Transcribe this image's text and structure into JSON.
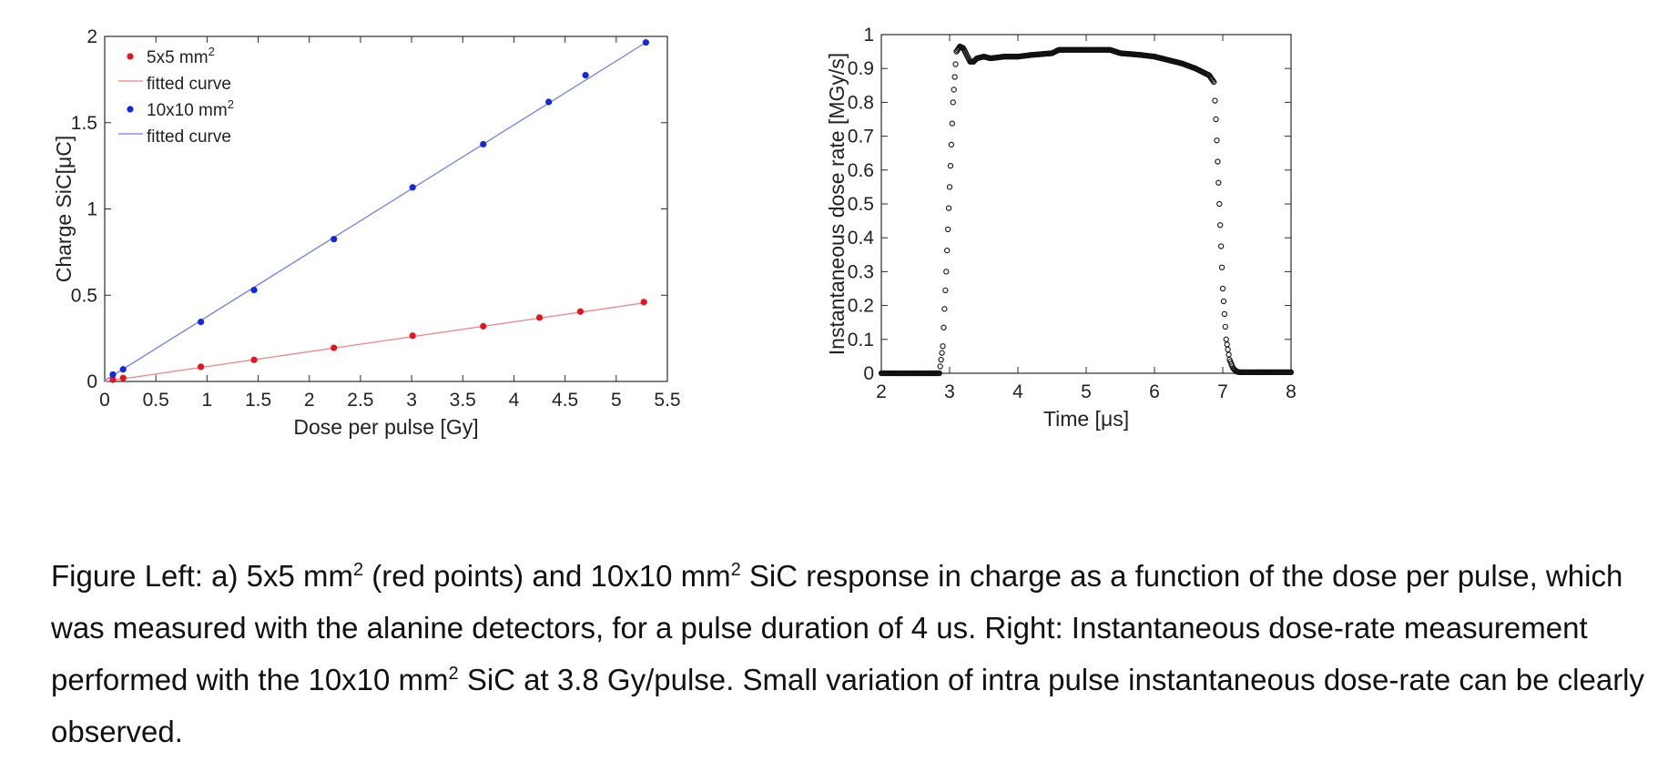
{
  "chart_data": [
    {
      "type": "scatter",
      "xlabel": "Dose per pulse [Gy]",
      "ylabel": "Charge SiC[μC]",
      "xlim": [
        0,
        5.5
      ],
      "ylim": [
        0,
        2
      ],
      "xticks": [
        0,
        0.5,
        1,
        1.5,
        2,
        2.5,
        3,
        3.5,
        4,
        4.5,
        5,
        5.5
      ],
      "xtick_labels": [
        "0",
        "0.5",
        "1",
        "1.5",
        "2",
        "2.5",
        "3",
        "3.5",
        "4",
        "4.5",
        "5",
        "5.5"
      ],
      "yticks": [
        0,
        0.5,
        1,
        1.5,
        2
      ],
      "ytick_labels": [
        "0",
        "0.5",
        "1",
        "1.5",
        "2"
      ],
      "grid": false,
      "legend_position": "top-left",
      "legend": [
        {
          "label": "5x5 mm",
          "sup": "2",
          "kind": "marker",
          "color": "#e8141c"
        },
        {
          "label": "fitted curve",
          "kind": "line",
          "color": "#f08080"
        },
        {
          "label": "10x10 mm",
          "sup": "2",
          "kind": "marker",
          "color": "#1428e0"
        },
        {
          "label": "fitted curve",
          "kind": "line",
          "color": "#6f7ff0"
        }
      ],
      "series": [
        {
          "kind": "points",
          "color": "#e8141c",
          "x": [
            0.08,
            0.18,
            0.94,
            1.46,
            2.24,
            3.01,
            3.7,
            4.25,
            4.65,
            5.27
          ],
          "y": [
            0.01,
            0.02,
            0.085,
            0.125,
            0.195,
            0.265,
            0.32,
            0.37,
            0.405,
            0.46
          ]
        },
        {
          "kind": "fit",
          "color": "#f08080",
          "x": [
            0.0,
            5.27
          ],
          "y": [
            0.0,
            0.455
          ]
        },
        {
          "kind": "points",
          "color": "#1428e0",
          "x": [
            0.08,
            0.18,
            0.94,
            1.46,
            2.24,
            3.01,
            3.7,
            4.34,
            4.7,
            5.29
          ],
          "y": [
            0.04,
            0.07,
            0.345,
            0.53,
            0.825,
            1.125,
            1.375,
            1.62,
            1.775,
            1.965
          ]
        },
        {
          "kind": "fit",
          "color": "#6f7ff0",
          "x": [
            0.0,
            5.29
          ],
          "y": [
            0.005,
            1.965
          ]
        }
      ]
    },
    {
      "type": "scatter",
      "xlabel": "Time [μs]",
      "ylabel": "Instantaneous dose rate [MGy/s]",
      "xlim": [
        2,
        8
      ],
      "ylim": [
        0,
        1
      ],
      "xticks": [
        2,
        3,
        4,
        5,
        6,
        7,
        8
      ],
      "xtick_labels": [
        "2",
        "3",
        "4",
        "5",
        "6",
        "7",
        "8"
      ],
      "yticks": [
        0,
        0.1,
        0.2,
        0.3,
        0.4,
        0.5,
        0.6,
        0.7,
        0.8,
        0.9,
        1
      ],
      "ytick_labels": [
        "0",
        "0.1",
        "0.2",
        "0.3",
        "0.4",
        "0.5",
        "0.6",
        "0.7",
        "0.8",
        "0.9",
        "1"
      ],
      "grid": false,
      "marker": "open-circle",
      "series": [
        {
          "color": "#111111",
          "x": [
            2.0,
            2.5,
            2.85,
            2.9,
            2.95,
            3.0,
            3.05,
            3.1,
            3.15,
            3.2,
            3.25,
            3.3,
            3.35,
            3.4,
            3.5,
            3.6,
            3.8,
            4.0,
            4.2,
            4.5,
            4.6,
            5.0,
            5.35,
            5.5,
            5.8,
            6.0,
            6.2,
            6.4,
            6.6,
            6.8,
            6.87,
            6.9,
            6.95,
            7.0,
            7.05,
            7.1,
            7.15,
            7.2,
            7.25,
            7.3,
            7.5,
            8.0
          ],
          "y": [
            0.0,
            0.0,
            0.0,
            0.08,
            0.3,
            0.55,
            0.8,
            0.95,
            0.965,
            0.96,
            0.94,
            0.92,
            0.92,
            0.93,
            0.935,
            0.93,
            0.935,
            0.935,
            0.94,
            0.945,
            0.955,
            0.955,
            0.955,
            0.945,
            0.94,
            0.935,
            0.925,
            0.915,
            0.9,
            0.88,
            0.86,
            0.75,
            0.5,
            0.25,
            0.1,
            0.04,
            0.015,
            0.005,
            0.003,
            0.003,
            0.003,
            0.003
          ]
        }
      ]
    }
  ],
  "caption": {
    "p1": "Figure Left: a) 5x5 mm",
    "sup1": "2",
    "p2": " (red points) and 10x10 mm",
    "sup2": "2",
    "p3": " SiC response in charge as a function of the dose per pulse, which was measured with the alanine detectors, for a pulse duration of 4 us. Right: Instantaneous dose-rate measurement performed with the 10x10 mm",
    "sup3": "2",
    "p4": " SiC at 3.8 Gy/pulse. Small variation of intra pulse instantaneous dose-rate can be clearly observed."
  }
}
